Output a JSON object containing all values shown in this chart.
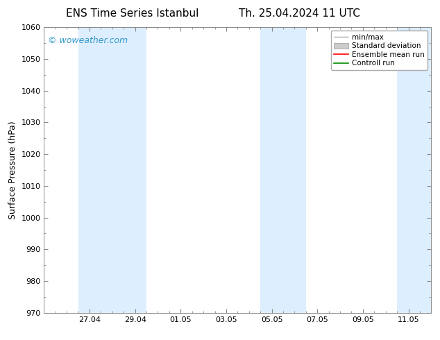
{
  "title_left": "ENS Time Series Istanbul",
  "title_right": "Th. 25.04.2024 11 UTC",
  "ylabel": "Surface Pressure (hPa)",
  "ylim": [
    970,
    1060
  ],
  "yticks": [
    970,
    980,
    990,
    1000,
    1010,
    1020,
    1030,
    1040,
    1050,
    1060
  ],
  "xtick_labels": [
    "27.04",
    "29.04",
    "01.05",
    "03.05",
    "05.05",
    "07.05",
    "09.05",
    "11.05"
  ],
  "xtick_positions": [
    2,
    4,
    6,
    8,
    10,
    12,
    14,
    16
  ],
  "xmin": 0,
  "xmax": 17,
  "background_color": "#ffffff",
  "plot_bg_color": "#ffffff",
  "shaded_bands": [
    {
      "xmin": 1.5,
      "xmax": 4.5,
      "color": "#ddeeff"
    },
    {
      "xmin": 9.5,
      "xmax": 11.5,
      "color": "#ddeeff"
    },
    {
      "xmin": 15.5,
      "xmax": 17.0,
      "color": "#ddeeff"
    }
  ],
  "watermark_text": "© woweather.com",
  "watermark_color": "#3399cc",
  "legend_minmax_color": "#aaaaaa",
  "legend_std_color": "#cccccc",
  "legend_ensemble_color": "#ff0000",
  "legend_control_color": "#008800",
  "title_fontsize": 11,
  "axis_label_fontsize": 9,
  "tick_fontsize": 8,
  "watermark_fontsize": 9,
  "legend_fontsize": 7.5
}
